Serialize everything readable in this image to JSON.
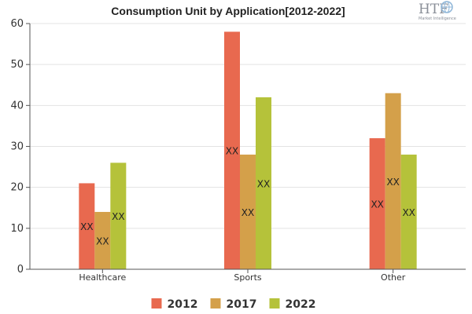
{
  "chart_data": {
    "type": "bar",
    "title": "Consumption Unit by  Application[2012-2022]",
    "categories": [
      "Healthcare",
      "Sports",
      "Other"
    ],
    "series": [
      {
        "name": "2012",
        "values": [
          21,
          58,
          32
        ],
        "color": "#e8694f"
      },
      {
        "name": "2017",
        "values": [
          14,
          28,
          43
        ],
        "color": "#d4a04a"
      },
      {
        "name": "2022",
        "values": [
          26,
          42,
          28
        ],
        "color": "#b5c23a"
      }
    ],
    "data_labels": [
      "XX",
      "XX",
      "XX",
      "XX",
      "XX",
      "XX",
      "XX",
      "XX",
      "XX"
    ],
    "ylim": [
      0,
      60
    ],
    "yticks": [
      "0",
      "10",
      "20",
      "30",
      "40",
      "50",
      "60"
    ],
    "grid": true,
    "legend_position": "bottom",
    "xlabel": "",
    "ylabel": ""
  },
  "logo": {
    "name": "HTF",
    "tagline": "Market Intelligence",
    "icon": "globe-icon"
  }
}
